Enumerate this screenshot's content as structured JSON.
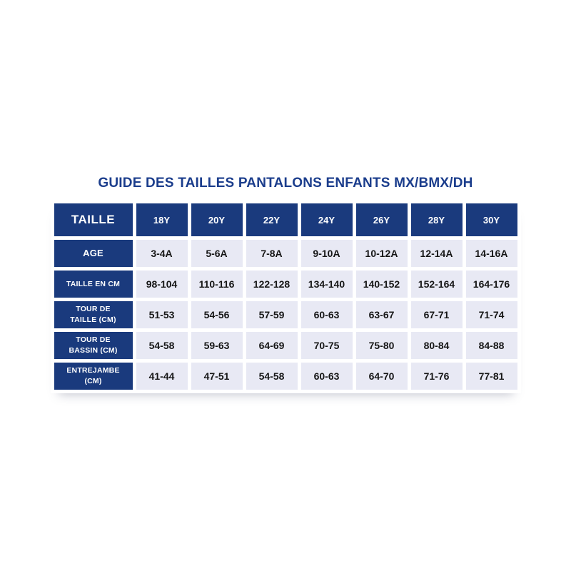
{
  "title": "GUIDE DES TAILLES PANTALONS ENFANTS MX/BMX/DH",
  "colors": {
    "navy_cell": "#1a3a7d",
    "title_text": "#1b3d8c",
    "light_cell": "#e8e9f4",
    "data_text": "#161616",
    "page_background": "#ffffff"
  },
  "table": {
    "header": [
      "TAILLE",
      "18Y",
      "20Y",
      "22Y",
      "24Y",
      "26Y",
      "28Y",
      "30Y"
    ],
    "rows": [
      {
        "label": "AGE",
        "values": [
          "3-4A",
          "5-6A",
          "7-8A",
          "9-10A",
          "10-12A",
          "12-14A",
          "14-16A"
        ]
      },
      {
        "label": "TAILLE EN CM",
        "values": [
          "98-104",
          "110-116",
          "122-128",
          "134-140",
          "140-152",
          "152-164",
          "164-176"
        ]
      },
      {
        "label": "TOUR DE\nTAILLE (CM)",
        "values": [
          "51-53",
          "54-56",
          "57-59",
          "60-63",
          "63-67",
          "67-71",
          "71-74"
        ]
      },
      {
        "label": "TOUR DE\nBASSIN (CM)",
        "values": [
          "54-58",
          "59-63",
          "64-69",
          "70-75",
          "75-80",
          "80-84",
          "84-88"
        ]
      },
      {
        "label": "ENTREJAMBE\n(CM)",
        "values": [
          "41-44",
          "47-51",
          "54-58",
          "60-63",
          "64-70",
          "71-76",
          "77-81"
        ]
      }
    ]
  }
}
